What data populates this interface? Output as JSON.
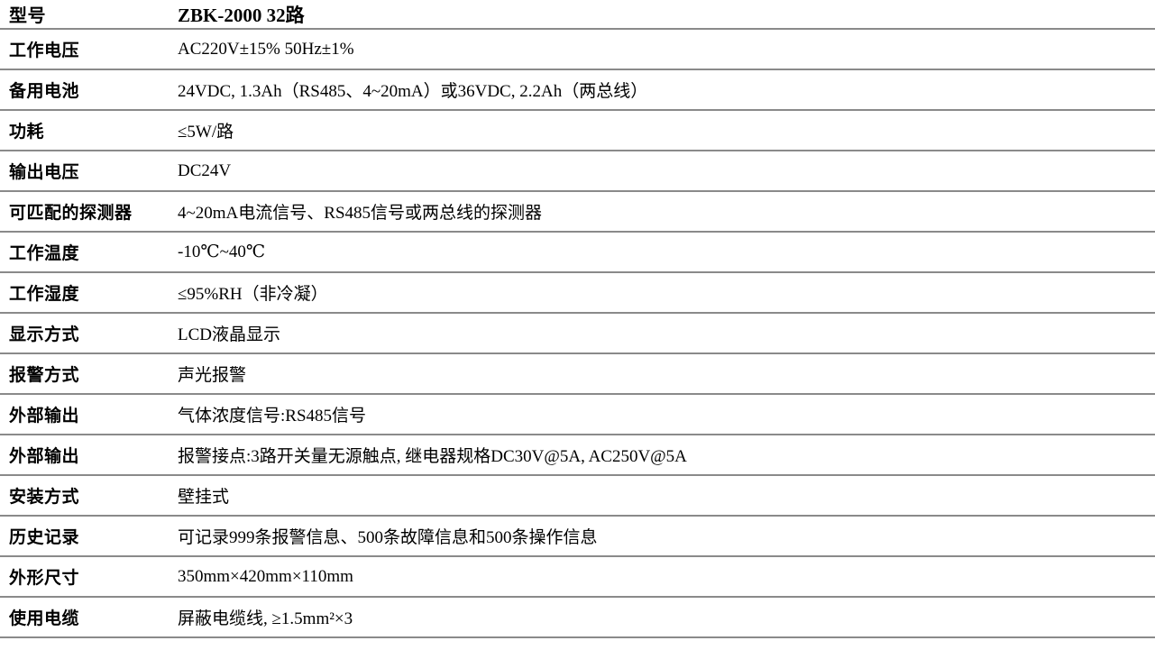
{
  "table": {
    "rows": [
      {
        "label": "型号",
        "value": "ZBK-2000 32路"
      },
      {
        "label": "工作电压",
        "value": "AC220V±15% 50Hz±1%"
      },
      {
        "label": "备用电池",
        "value": "24VDC, 1.3Ah（RS485、4~20mA）或36VDC, 2.2Ah（两总线）"
      },
      {
        "label": "功耗",
        "value": "≤5W/路"
      },
      {
        "label": "输出电压",
        "value": "DC24V"
      },
      {
        "label": "可匹配的探测器",
        "value": "4~20mA电流信号、RS485信号或两总线的探测器"
      },
      {
        "label": "工作温度",
        "value": "-10℃~40℃"
      },
      {
        "label": "工作湿度",
        "value": "≤95%RH（非冷凝）"
      },
      {
        "label": "显示方式",
        "value": "LCD液晶显示"
      },
      {
        "label": "报警方式",
        "value": "声光报警"
      },
      {
        "label": "外部输出",
        "value": "气体浓度信号:RS485信号"
      },
      {
        "label": "外部输出",
        "value": "报警接点:3路开关量无源触点, 继电器规格DC30V@5A, AC250V@5A"
      },
      {
        "label": "安装方式",
        "value": "壁挂式"
      },
      {
        "label": "历史记录",
        "value": "可记录999条报警信息、500条故障信息和500条操作信息"
      },
      {
        "label": "外形尺寸",
        "value": "350mm×420mm×110mm"
      },
      {
        "label": "使用电缆",
        "value": "屏蔽电缆线, ≥1.5mm²×3"
      }
    ]
  },
  "colors": {
    "divider": "#8a8a8a",
    "text": "#000000",
    "background": "#ffffff"
  }
}
